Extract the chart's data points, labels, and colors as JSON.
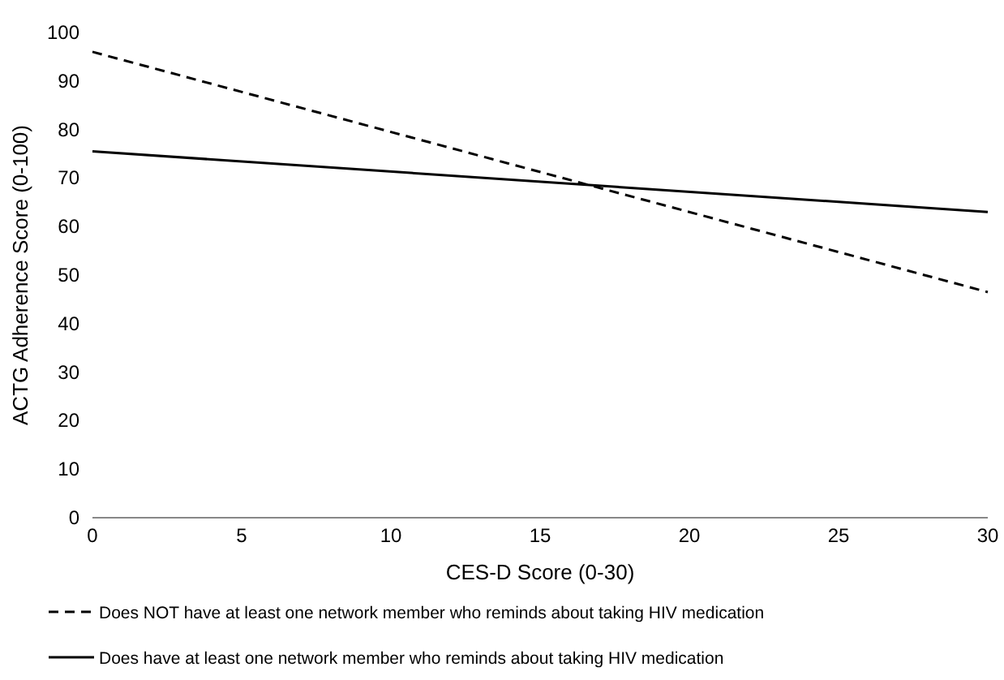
{
  "chart_data": {
    "type": "line",
    "xlabel": "CES-D Score (0-30)",
    "ylabel": "ACTG Adherence Score (0-100)",
    "xlim": [
      0,
      30
    ],
    "xticks": [
      0,
      5,
      10,
      15,
      20,
      25,
      30
    ],
    "ylim": [
      0,
      100
    ],
    "yticks": [
      0,
      10,
      20,
      30,
      40,
      50,
      60,
      70,
      80,
      90,
      100
    ],
    "grid": false,
    "legend": "bottom",
    "x": [
      0,
      30
    ],
    "series": [
      {
        "name": "Does NOT have at least one network member who reminds about taking HIV medication",
        "color": "#000000",
        "line_style": "dashed",
        "values": [
          96,
          46.5
        ]
      },
      {
        "name": "Does have at least one network member who reminds about taking HIV medication",
        "color": "#000000",
        "line_style": "solid",
        "values": [
          75.5,
          63
        ]
      }
    ]
  }
}
